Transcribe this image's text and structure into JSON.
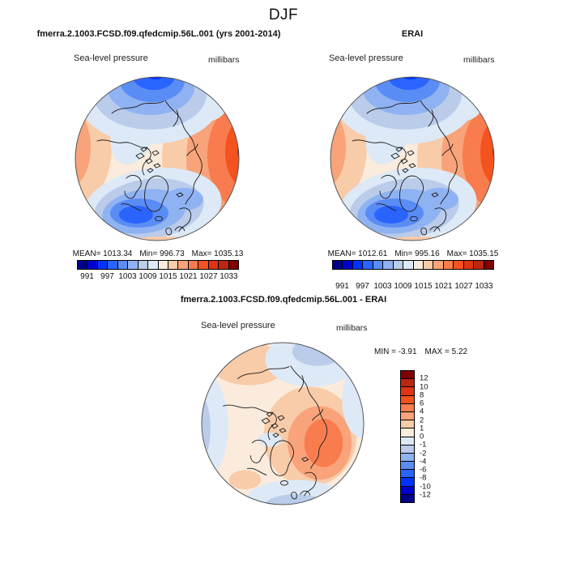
{
  "page": {
    "title": "DJF"
  },
  "labels": {
    "variable": "Sea-level pressure",
    "units": "millibars"
  },
  "panels": {
    "model": {
      "title": "fmerra.2.1003.FCSD.f09.qfedcmip.56L.001 (yrs 2001-2014)",
      "stats_mean": "MEAN= 1013.34",
      "stats_min": "Min= 996.73",
      "stats_max": "Max= 1035.13"
    },
    "obs": {
      "title": "ERAI",
      "stats_mean": "MEAN= 1012.61",
      "stats_min": "Min= 995.16",
      "stats_max": "Max= 1035.15"
    },
    "diff": {
      "title": "fmerra.2.1003.FCSD.f09.qfedcmip.56L.001 - ERAI",
      "stats_min": "MIN =  -3.91",
      "stats_max": "MAX =   5.22"
    }
  },
  "colorbar": {
    "ticks": [
      "991",
      "997",
      "1003",
      "1009",
      "1015",
      "1021",
      "1027",
      "1033"
    ],
    "palette": [
      "#00008B",
      "#0000CD",
      "#0033FF",
      "#2A64FF",
      "#5A8CF5",
      "#8FB2F2",
      "#BACCEA",
      "#DDE9F6",
      "#FAEBDC",
      "#F8CBA9",
      "#F8A379",
      "#F87C4E",
      "#F4521F",
      "#E13413",
      "#BB2711",
      "#7F0000"
    ]
  },
  "diff_colorbar": {
    "labels": [
      "12",
      "10",
      "8",
      "6",
      "4",
      "2",
      "1",
      "0",
      "-1",
      "-2",
      "-4",
      "-6",
      "-8",
      "-10",
      "-12"
    ],
    "palette": [
      "#7F0000",
      "#BB2711",
      "#E13413",
      "#F4521F",
      "#F87C4E",
      "#F8A379",
      "#F8CBA9",
      "#FAEBDC",
      "#DDE9F6",
      "#BACCEA",
      "#8FB2F2",
      "#5A8CF5",
      "#2A64FF",
      "#0033FF",
      "#0000CD",
      "#00008B"
    ]
  },
  "chart_data": [
    {
      "type": "filled-contour-map",
      "panel": "model",
      "title": "fmerra.2.1003.FCSD.f09.qfedcmip.56L.001 (yrs 2001-2014)",
      "season": "DJF",
      "variable": "Sea-level pressure",
      "units": "millibars",
      "stats": {
        "mean": 1013.34,
        "min": 996.73,
        "max": 1035.13
      },
      "colorbar_ticks": [
        991,
        997,
        1003,
        1009,
        1015,
        1021,
        1027,
        1033
      ],
      "colorbar_orientation": "horizontal",
      "features": "deep low over North Pacific (top) and North Atlantic/Icelandic region (bottom), strong high over Siberia (right) and eastern Pacific/North America (left)"
    },
    {
      "type": "filled-contour-map",
      "panel": "reference",
      "title": "ERAI",
      "season": "DJF",
      "variable": "Sea-level pressure",
      "units": "millibars",
      "stats": {
        "mean": 1012.61,
        "min": 995.16,
        "max": 1035.15
      },
      "colorbar_ticks": [
        991,
        997,
        1003,
        1009,
        1015,
        1021,
        1027,
        1033
      ],
      "colorbar_orientation": "horizontal",
      "features": "same pattern as model panel with slightly deeper Icelandic low"
    },
    {
      "type": "filled-contour-map",
      "panel": "difference",
      "title": "fmerra.2.1003.FCSD.f09.qfedcmip.56L.001 - ERAI",
      "season": "DJF",
      "variable": "Sea-level pressure",
      "units": "millibars",
      "stats": {
        "min": -3.91,
        "max": 5.22
      },
      "colorbar_levels": [
        12,
        10,
        8,
        6,
        4,
        2,
        1,
        0,
        -1,
        -2,
        -4,
        -6,
        -8,
        -10,
        -12
      ],
      "colorbar_orientation": "vertical",
      "features": "positive anomaly (orange, ~+4 to +5) over Barents/Scandinavia region, weak negative anomalies around periphery"
    }
  ]
}
